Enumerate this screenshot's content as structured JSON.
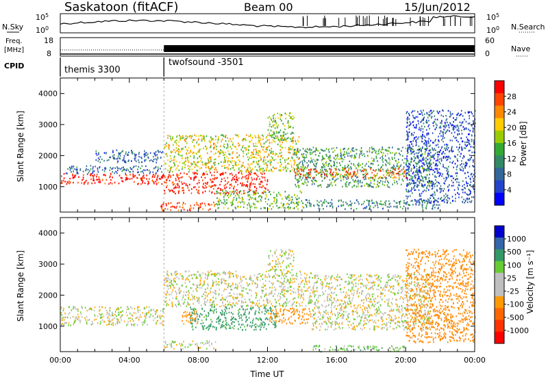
{
  "header": {
    "station": "Saskatoon (fitACF)",
    "beam": "Beam 00",
    "date": "15/Jun/2012"
  },
  "strips": {
    "nsky": {
      "label": "N.Sky",
      "yticks": [
        "10^5",
        "10^0"
      ],
      "right_label": "N.Search",
      "right_ticks": [
        "10^5",
        "10^0"
      ]
    },
    "freq": {
      "label_line1": "Freq.",
      "label_line2": "[MHz]",
      "yticks": [
        "18",
        "8"
      ],
      "right_label": "Nave",
      "right_ticks": [
        "60",
        "0"
      ]
    },
    "cpid": {
      "label": "CPID",
      "modes": [
        {
          "name": "themis 3300",
          "start_hour": 0,
          "end_hour": 6
        },
        {
          "name": "twofsound -3501",
          "start_hour": 6,
          "end_hour": 24
        }
      ]
    }
  },
  "chart_data": [
    {
      "type": "heatmap",
      "title": "",
      "ylabel": "Slant Range [km]",
      "xlabel": "",
      "xlim": [
        0,
        24
      ],
      "ylim": [
        180,
        4500
      ],
      "yticks": [
        1000,
        2000,
        3000,
        4000
      ],
      "xtick_labels": [
        "00:00",
        "04:00",
        "08:00",
        "12:00",
        "16:00",
        "20:00",
        "00:00"
      ],
      "colorbar": {
        "label": "Power [dB]",
        "ticks": [
          28,
          24,
          20,
          16,
          12,
          8,
          4
        ],
        "colors": [
          "#ff0000",
          "#ff4400",
          "#ff8800",
          "#ffcc00",
          "#99cc00",
          "#33aa33",
          "#338866",
          "#336699",
          "#2244cc",
          "#0000ff"
        ]
      },
      "regions": [
        {
          "t0": 0.0,
          "t1": 6.0,
          "r0": 1100,
          "r1": 1450,
          "value": 28
        },
        {
          "t0": 0.3,
          "t1": 6.0,
          "r0": 1450,
          "r1": 1700,
          "value": 8
        },
        {
          "t0": 6.0,
          "t1": 12.0,
          "r0": 800,
          "r1": 1500,
          "value": 28
        },
        {
          "t0": 6.0,
          "t1": 13.8,
          "r0": 1500,
          "r1": 2700,
          "value": 18
        },
        {
          "t0": 5.8,
          "t1": 9.0,
          "r0": 250,
          "r1": 520,
          "value": 26
        },
        {
          "t0": 9.0,
          "t1": 14.0,
          "r0": 300,
          "r1": 900,
          "value": 14
        },
        {
          "t0": 13.5,
          "t1": 21.5,
          "r0": 1000,
          "r1": 2300,
          "value": 12
        },
        {
          "t0": 12.0,
          "t1": 13.5,
          "r0": 2500,
          "r1": 3400,
          "value": 14
        },
        {
          "t0": 13.5,
          "t1": 20.0,
          "r0": 1300,
          "r1": 1600,
          "value": 24
        },
        {
          "t0": 20.0,
          "t1": 24.0,
          "r0": 500,
          "r1": 3500,
          "value": 6
        },
        {
          "t0": 2.0,
          "t1": 6.0,
          "r0": 1800,
          "r1": 2200,
          "value": 8
        },
        {
          "t0": 14.0,
          "t1": 22.0,
          "r0": 300,
          "r1": 600,
          "value": 10
        }
      ]
    },
    {
      "type": "heatmap",
      "title": "",
      "ylabel": "Slant Range [km]",
      "xlabel": "Time UT",
      "xlim": [
        0,
        24
      ],
      "ylim": [
        180,
        4500
      ],
      "yticks": [
        1000,
        2000,
        3000,
        4000
      ],
      "xtick_labels": [
        "00:00",
        "04:00",
        "08:00",
        "12:00",
        "16:00",
        "20:00",
        "00:00"
      ],
      "colorbar": {
        "label": "Velocity [m s⁻¹]",
        "ticks": [
          "1000",
          "500",
          "100",
          "25",
          "-25",
          "-100",
          "-500",
          "-1000"
        ],
        "colors": [
          "#0000cc",
          "#3366aa",
          "#339966",
          "#66cc33",
          "#bfbfbf",
          "#bfbfbf",
          "#ff9900",
          "#ff6600",
          "#ff3300",
          "#ff0000"
        ]
      },
      "regions": [
        {
          "t0": 0.0,
          "t1": 6.0,
          "r0": 1050,
          "r1": 1650,
          "value": 0
        },
        {
          "t0": 6.0,
          "t1": 14.5,
          "r0": 1650,
          "r1": 2800,
          "value": 0
        },
        {
          "t0": 14.5,
          "t1": 21.5,
          "r0": 900,
          "r1": 2700,
          "value": 0
        },
        {
          "t0": 12.0,
          "t1": 13.5,
          "r0": 2800,
          "r1": 3500,
          "value": 0
        },
        {
          "t0": 7.5,
          "t1": 12.5,
          "r0": 900,
          "r1": 1650,
          "value": 150
        },
        {
          "t0": 7.0,
          "t1": 8.0,
          "r0": 1100,
          "r1": 1500,
          "value": -150
        },
        {
          "t0": 12.0,
          "t1": 14.5,
          "r0": 1100,
          "r1": 1600,
          "value": -150
        },
        {
          "t0": 6.0,
          "t1": 9.0,
          "r0": 300,
          "r1": 550,
          "value": 0
        },
        {
          "t0": 14.5,
          "t1": 20.0,
          "r0": 200,
          "r1": 400,
          "value": 60
        },
        {
          "t0": 20.0,
          "t1": 24.0,
          "r0": 500,
          "r1": 3500,
          "value": -200
        }
      ]
    }
  ]
}
